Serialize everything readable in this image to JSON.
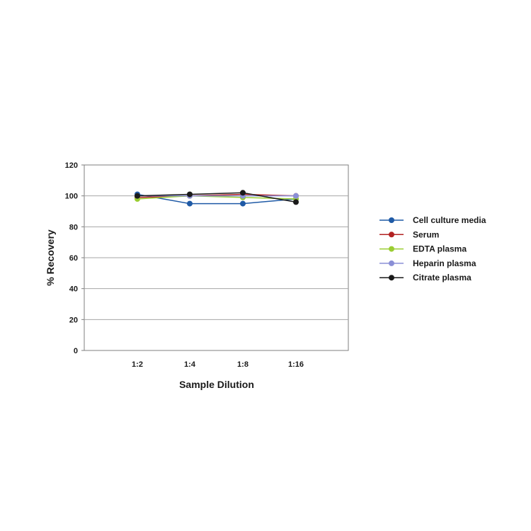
{
  "chart_data": {
    "type": "line",
    "title": "",
    "xlabel": "Sample Dilution",
    "ylabel": "% Recovery",
    "categories": [
      "1:2",
      "1:4",
      "1:8",
      "1:16"
    ],
    "ylim": [
      0,
      120
    ],
    "yticks": [
      "0",
      "20",
      "40",
      "60",
      "80",
      "100",
      "120"
    ],
    "grid": "horizontal",
    "legend_position": "right",
    "series": [
      {
        "name": "Cell culture media",
        "color": "#1f5aa6",
        "values": [
          101,
          95,
          95,
          98
        ]
      },
      {
        "name": "Serum",
        "color": "#b22222",
        "values": [
          99,
          100,
          101,
          100
        ]
      },
      {
        "name": "EDTA plasma",
        "color": "#9acd32",
        "values": [
          98,
          100,
          99,
          98
        ]
      },
      {
        "name": "Heparin plasma",
        "color": "#8a8fd6",
        "values": [
          100,
          100,
          100,
          100
        ]
      },
      {
        "name": "Citrate plasma",
        "color": "#1a1a1a",
        "values": [
          100,
          101,
          102,
          96
        ]
      }
    ]
  }
}
